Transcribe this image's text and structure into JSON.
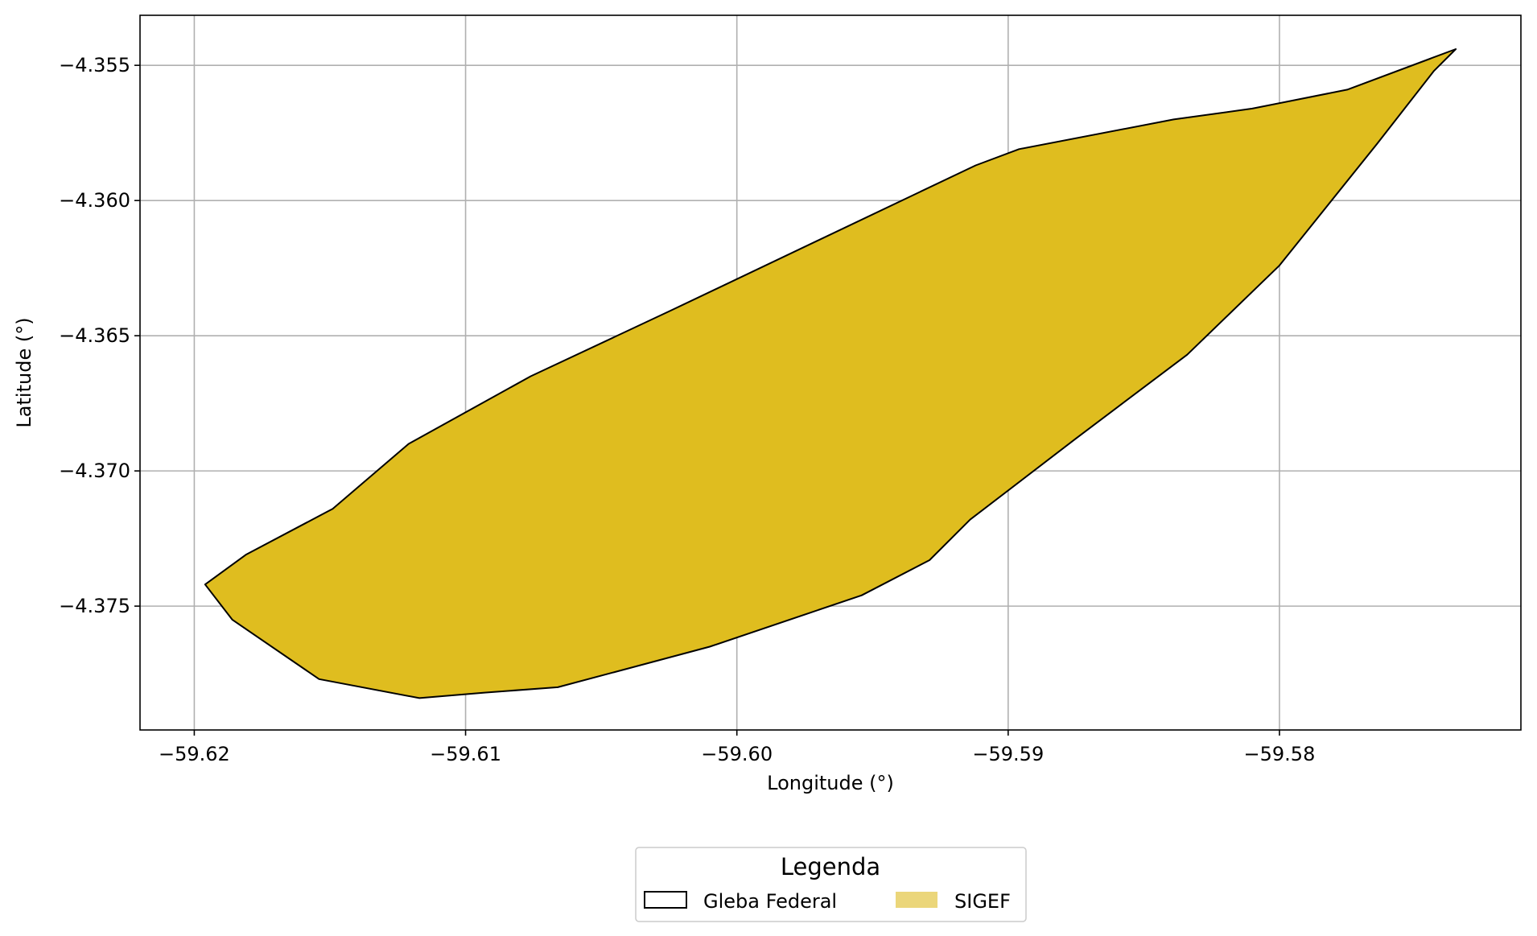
{
  "chart_data": {
    "type": "map",
    "xlabel": "Longitude (°)",
    "ylabel": "Latitude (°)",
    "xlim": [
      -59.622,
      -59.5711
    ],
    "ylim": [
      -4.37958,
      -4.35315
    ],
    "xticks": [
      -59.62,
      -59.61,
      -59.6,
      -59.59,
      -59.58
    ],
    "xtick_labels": [
      "−59.62",
      "−59.61",
      "−59.60",
      "−59.59",
      "−59.58"
    ],
    "yticks": [
      -4.355,
      -4.36,
      -4.365,
      -4.37,
      -4.375
    ],
    "ytick_labels": [
      "−4.355",
      "−4.360",
      "−4.365",
      "−4.370",
      "−4.375"
    ],
    "grid": true,
    "legend": {
      "title": "Legenda",
      "position": "bottom-center",
      "entries": [
        {
          "label": "Gleba Federal",
          "style": "outline",
          "color": "#000000"
        },
        {
          "label": "SIGEF",
          "style": "fill",
          "color": "#ebd67a"
        }
      ]
    },
    "series": [
      {
        "name": "SIGEF",
        "fill": "#dfbd1f",
        "stroke": "#000000",
        "polygon": [
          [
            -59.6196,
            -4.3742
          ],
          [
            -59.6181,
            -4.3731
          ],
          [
            -59.6149,
            -4.3714
          ],
          [
            -59.6121,
            -4.369
          ],
          [
            -59.6076,
            -4.3665
          ],
          [
            -59.6025,
            -4.3641
          ],
          [
            -59.5912,
            -4.3587
          ],
          [
            -59.5896,
            -4.3581
          ],
          [
            -59.5839,
            -4.357
          ],
          [
            -59.581,
            -4.3566
          ],
          [
            -59.5775,
            -4.3559
          ],
          [
            -59.5735,
            -4.3544
          ],
          [
            -59.5743,
            -4.3552
          ],
          [
            -59.5764,
            -4.3579
          ],
          [
            -59.58,
            -4.3624
          ],
          [
            -59.5834,
            -4.3657
          ],
          [
            -59.5875,
            -4.3688
          ],
          [
            -59.5914,
            -4.3718
          ],
          [
            -59.5929,
            -4.3733
          ],
          [
            -59.5954,
            -4.3746
          ],
          [
            -59.601,
            -4.3765
          ],
          [
            -59.6066,
            -4.378
          ],
          [
            -59.6093,
            -4.3782
          ],
          [
            -59.6117,
            -4.3784
          ],
          [
            -59.6154,
            -4.3777
          ],
          [
            -59.6186,
            -4.3755
          ],
          [
            -59.6196,
            -4.3742
          ]
        ]
      }
    ]
  }
}
